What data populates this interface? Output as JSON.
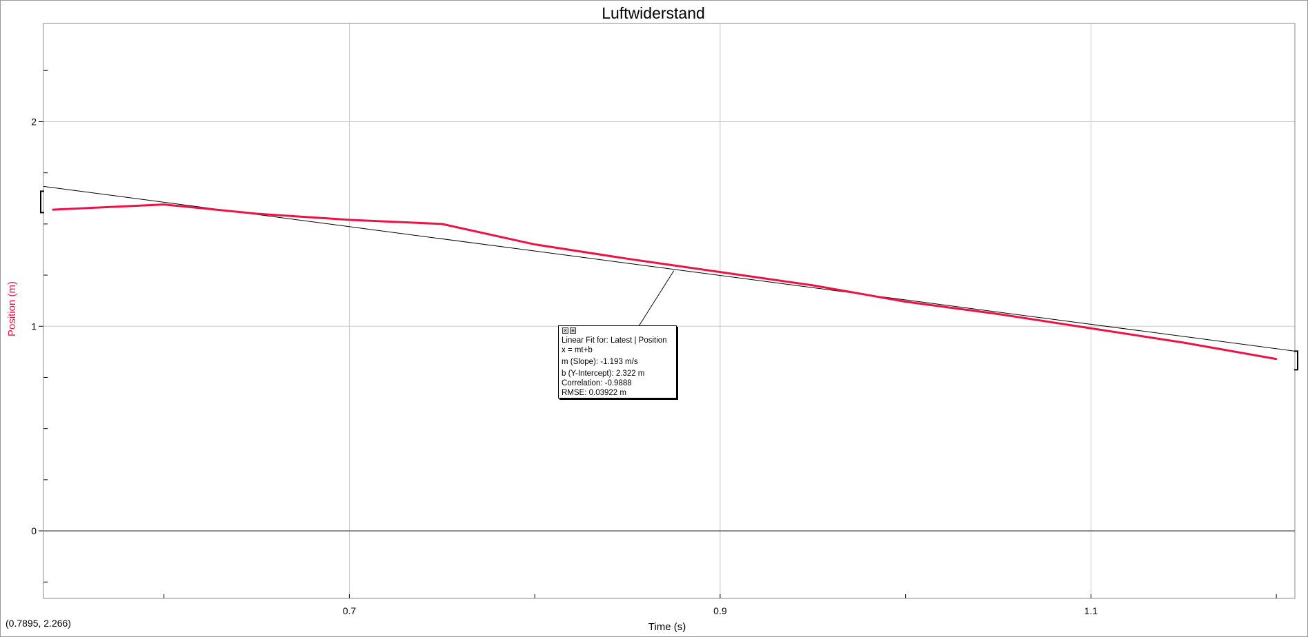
{
  "colors": {
    "series": "#ee1144",
    "fit_line": "#000000",
    "grid": "#c8c8c8",
    "zero_line": "#555555",
    "ylabel": "#ee1144"
  },
  "coord_readout": "(0.7895, 2.266)",
  "fit_box": {
    "close_icon": "close-icon",
    "menu_icon": "menu-icon",
    "title": "Linear Fit for: Latest | Position",
    "equation": "x = mt+b",
    "slope": "m (Slope): -1.193 m/s",
    "intercept": "b (Y-Intercept): 2.322 m",
    "correlation": "Correlation: -0.9888",
    "rmse": "RMSE: 0.03922 m"
  },
  "chart_data": {
    "type": "line",
    "title": "Luftwiderstand",
    "xlabel": "Time (s)",
    "ylabel": "Position (m)",
    "xlim": [
      0.535,
      1.21
    ],
    "ylim": [
      -0.33,
      2.48
    ],
    "x_ticks": [
      0.7,
      0.9,
      1.1
    ],
    "x_tick_labels": [
      "0.7",
      "0.9",
      "1.1"
    ],
    "y_ticks": [
      0,
      1,
      2
    ],
    "y_tick_labels": [
      "0",
      "1",
      "2"
    ],
    "grid": true,
    "series": [
      {
        "name": "Position",
        "x": [
          0.54,
          0.6,
          0.65,
          0.7,
          0.75,
          0.8,
          0.85,
          0.9,
          0.95,
          1.0,
          1.05,
          1.1,
          1.15,
          1.2
        ],
        "y": [
          1.57,
          1.595,
          1.55,
          1.52,
          1.5,
          1.4,
          1.33,
          1.265,
          1.2,
          1.12,
          1.06,
          0.99,
          0.92,
          0.84
        ]
      }
    ],
    "fit": {
      "type": "linear",
      "slope": -1.193,
      "intercept": 2.322,
      "x_range": [
        0.535,
        1.21
      ]
    }
  }
}
